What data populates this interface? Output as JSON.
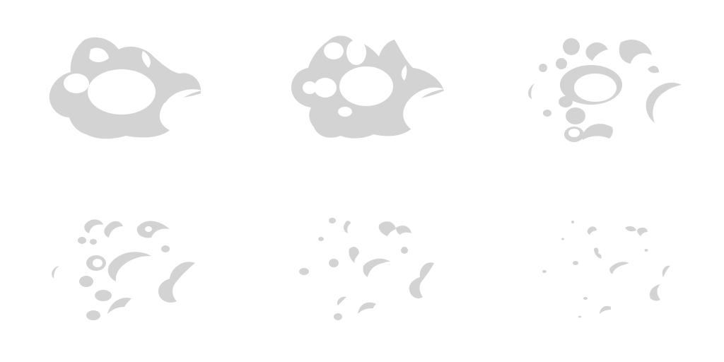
{
  "sprite_sheet": {
    "frame_count": 6,
    "grid": {
      "columns": 3,
      "rows": 2
    },
    "colors": {
      "smoke": "#d3d3d3",
      "background": "#ffffff"
    },
    "frames": [
      {
        "index": 1,
        "stage": "dense-cloud"
      },
      {
        "index": 2,
        "stage": "cloud-breaking-up"
      },
      {
        "index": 3,
        "stage": "cloud-fragmenting"
      },
      {
        "index": 4,
        "stage": "scattered-puffs"
      },
      {
        "index": 5,
        "stage": "sparse-puffs"
      },
      {
        "index": 6,
        "stage": "dissipating-wisps"
      }
    ]
  }
}
